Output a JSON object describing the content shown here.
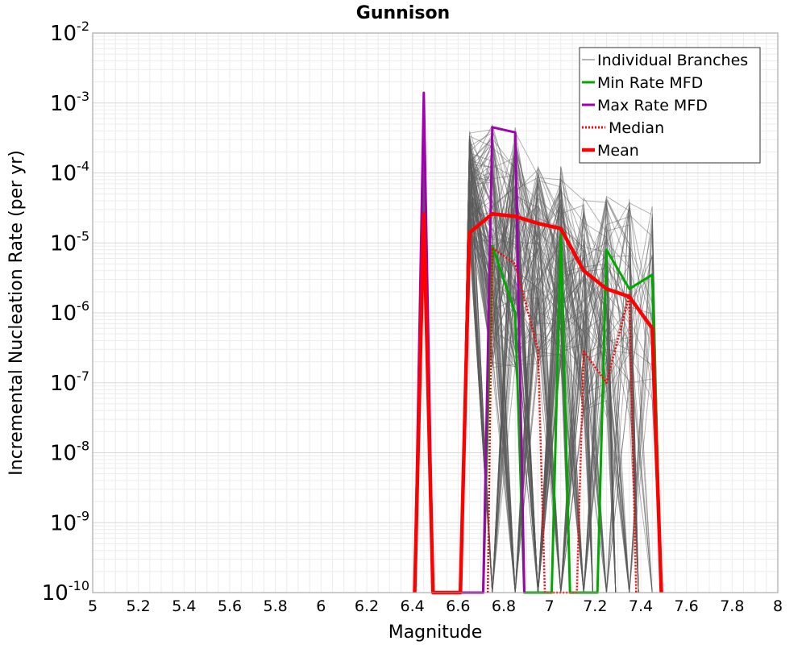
{
  "chart_data": {
    "type": "line",
    "title": "Gunnison",
    "xlabel": "Magnitude",
    "ylabel": "Incremental Nucleation Rate (per yr)",
    "xlim": [
      5,
      8
    ],
    "ylim": [
      1e-10,
      0.01
    ],
    "y_scale": "log",
    "grid": true,
    "legend_position": "top-right",
    "x_ticks": [
      "5",
      "5.2",
      "5.4",
      "5.6",
      "5.8",
      "6",
      "6.2",
      "6.4",
      "6.6",
      "6.8",
      "7",
      "7.2",
      "7.4",
      "7.6",
      "7.8",
      "8"
    ],
    "y_ticks": [
      {
        "base": "10",
        "exp": "-2"
      },
      {
        "base": "10",
        "exp": "-3"
      },
      {
        "base": "10",
        "exp": "-4"
      },
      {
        "base": "10",
        "exp": "-5"
      },
      {
        "base": "10",
        "exp": "-6"
      },
      {
        "base": "10",
        "exp": "-7"
      },
      {
        "base": "10",
        "exp": "-8"
      },
      {
        "base": "10",
        "exp": "-9"
      },
      {
        "base": "10",
        "exp": "-10"
      }
    ],
    "series": [
      {
        "name": "Individual Branches",
        "color": "#5a5a5a",
        "style": "thin"
      },
      {
        "name": "Min Rate MFD",
        "color": "#00a800",
        "style": "solid",
        "points": [
          [
            6.41,
            1e-10
          ],
          [
            6.45,
            1.2e-05
          ],
          [
            6.49,
            1e-10
          ],
          [
            6.71,
            1e-10
          ],
          [
            6.75,
            9e-06
          ],
          [
            6.85,
            1e-06
          ],
          [
            6.89,
            1e-10
          ],
          [
            7.01,
            1e-10
          ],
          [
            7.05,
            1.3e-05
          ],
          [
            7.09,
            1e-10
          ],
          [
            7.21,
            1e-10
          ],
          [
            7.25,
            8e-06
          ],
          [
            7.35,
            2.2e-06
          ],
          [
            7.45,
            3.5e-06
          ],
          [
            7.49,
            1e-10
          ]
        ]
      },
      {
        "name": "Max Rate MFD",
        "color": "#a000b0",
        "style": "solid",
        "points": [
          [
            6.41,
            1e-10
          ],
          [
            6.45,
            0.0014
          ],
          [
            6.49,
            1e-10
          ],
          [
            6.71,
            1e-10
          ],
          [
            6.75,
            0.00045
          ],
          [
            6.85,
            0.00038
          ],
          [
            6.89,
            1e-10
          ]
        ]
      },
      {
        "name": "Median",
        "color": "#ff0000",
        "style": "dotted",
        "points": [
          [
            6.73,
            1e-10
          ],
          [
            6.75,
            8.5e-06
          ],
          [
            6.85,
            5e-06
          ],
          [
            6.95,
            3e-07
          ],
          [
            6.98,
            1e-10
          ],
          [
            7.12,
            1e-10
          ],
          [
            7.15,
            2.8e-07
          ],
          [
            7.25,
            1e-07
          ],
          [
            7.35,
            1.8e-06
          ],
          [
            7.38,
            1e-10
          ]
        ]
      },
      {
        "name": "Mean",
        "color": "#ff0000",
        "style": "thick",
        "points": [
          [
            6.41,
            1e-10
          ],
          [
            6.45,
            2.6e-05
          ],
          [
            6.49,
            1e-10
          ],
          [
            6.61,
            1e-10
          ],
          [
            6.65,
            1.4e-05
          ],
          [
            6.75,
            2.6e-05
          ],
          [
            6.85,
            2.4e-05
          ],
          [
            6.95,
            1.9e-05
          ],
          [
            7.05,
            1.6e-05
          ],
          [
            7.15,
            4e-06
          ],
          [
            7.25,
            2.2e-06
          ],
          [
            7.35,
            1.7e-06
          ],
          [
            7.45,
            6e-07
          ],
          [
            7.49,
            1e-10
          ]
        ]
      }
    ]
  }
}
